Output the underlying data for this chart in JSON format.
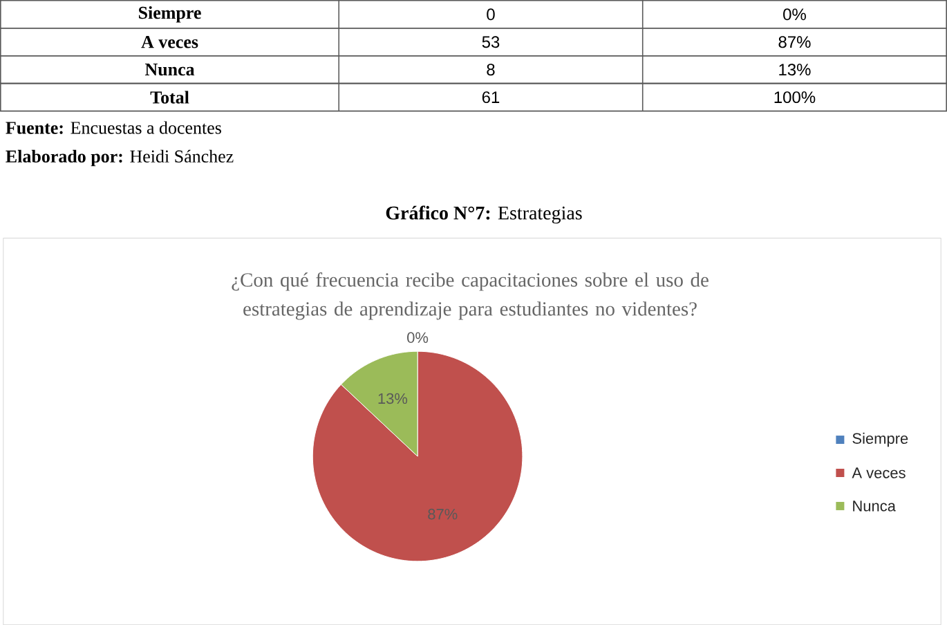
{
  "chart_data": {
    "type": "pie",
    "title": "**Gráfico N°7:** Estrategias",
    "subtitle": "¿Con qué frecuencia recibe capacitaciones sobre el uso de estrategias de aprendizaje para estudiantes no videntes?",
    "categories": [
      "Siempre",
      "A veces",
      "Nunca"
    ],
    "values": [
      0,
      87,
      13
    ],
    "colors": [
      "#4f81bd",
      "#c0504d",
      "#9bbb59"
    ],
    "value_labels": [
      "0%",
      "87%",
      "13%"
    ],
    "legend": "right",
    "annotations": [
      "Siempre",
      "0",
      "0%",
      "A veces",
      "53",
      "87%",
      "Nunca",
      "8",
      "13%",
      "Total",
      "61",
      "100%",
      "**Fuente:** Encuestas a docentes",
      "**Elaborado por:** Heidi Sánchez"
    ]
  }
}
